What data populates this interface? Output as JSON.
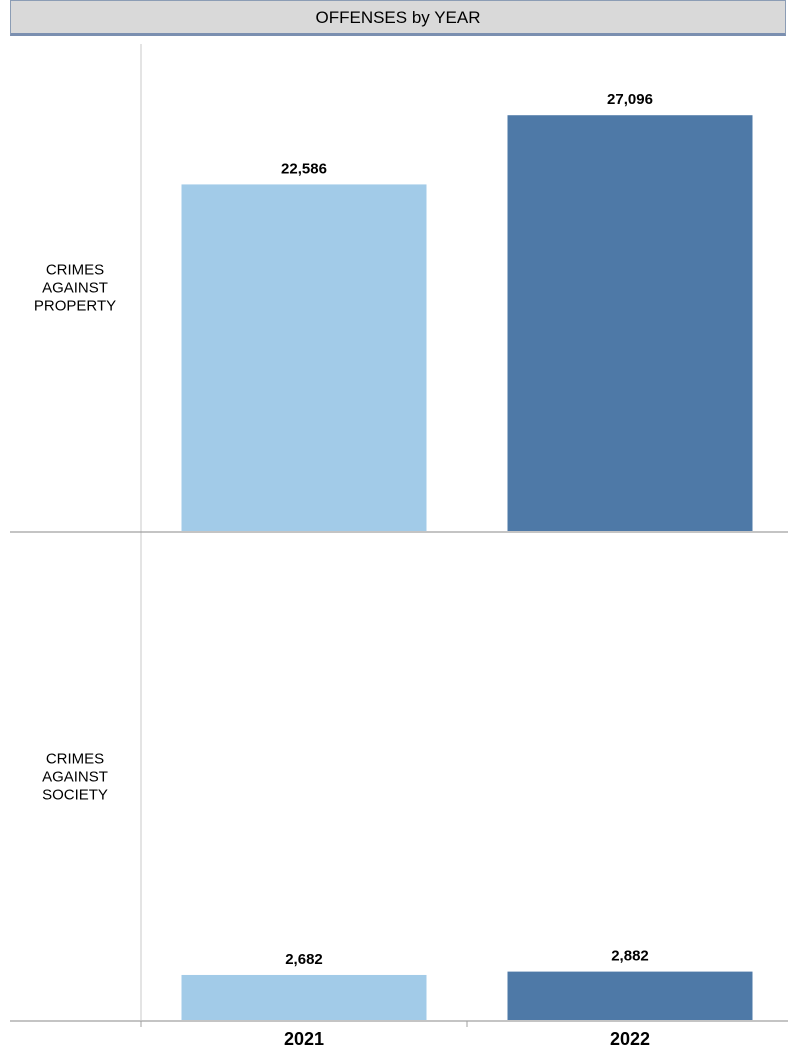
{
  "chart_data": {
    "type": "bar",
    "title": "OFFENSES by YEAR",
    "categories": [
      "2021",
      "2022"
    ],
    "colors": {
      "2021": "#a2cbe8",
      "2022": "#4e79a7"
    },
    "panels": [
      {
        "label": [
          "CRIMES",
          "AGAINST",
          "PROPERTY"
        ],
        "values": [
          22586,
          27096
        ],
        "value_labels": [
          "22,586",
          "27,096"
        ],
        "ylim": [
          0,
          29000
        ]
      },
      {
        "label": [
          "CRIMES",
          "AGAINST",
          "SOCIETY"
        ],
        "values": [
          2682,
          2882
        ],
        "value_labels": [
          "2,682",
          "2,882"
        ],
        "ylim": [
          0,
          29000
        ]
      }
    ],
    "grid": false
  }
}
